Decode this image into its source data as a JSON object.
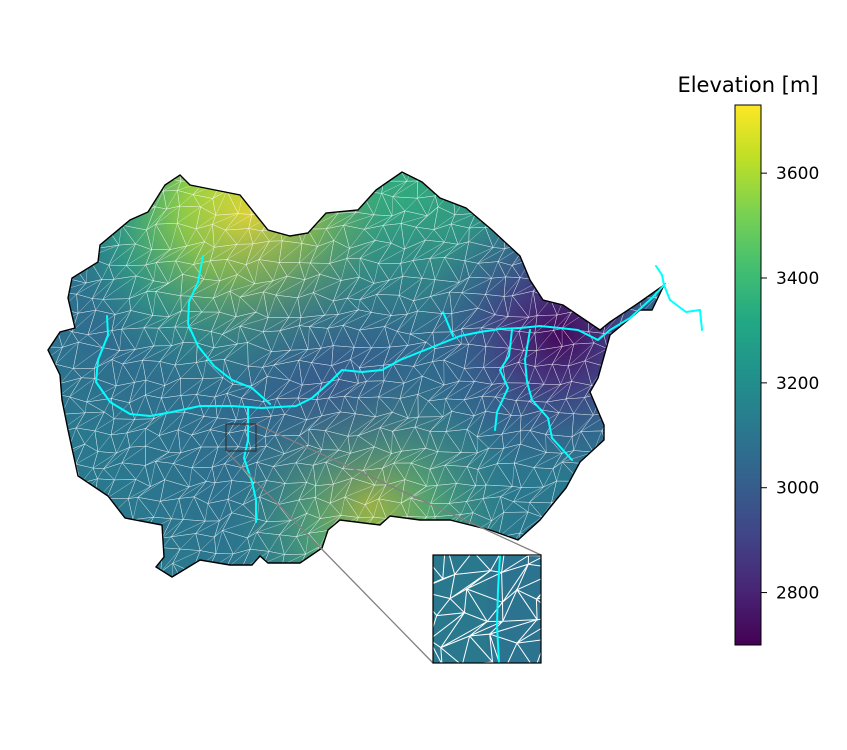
{
  "colorbar": {
    "title": "Elevation [m]",
    "min": 2700,
    "max": 3730,
    "colormap": "viridis",
    "ticks": [
      {
        "value": 2800,
        "label": "2800"
      },
      {
        "value": 3000,
        "label": "3000"
      },
      {
        "value": 3200,
        "label": "3200"
      },
      {
        "value": 3400,
        "label": "3400"
      },
      {
        "value": 3600,
        "label": "3600"
      }
    ]
  },
  "colors": {
    "stream": "#00ffff",
    "mesh_lines": "#ffffff",
    "boundary": "#000000",
    "inset_connector": "#808080"
  }
}
